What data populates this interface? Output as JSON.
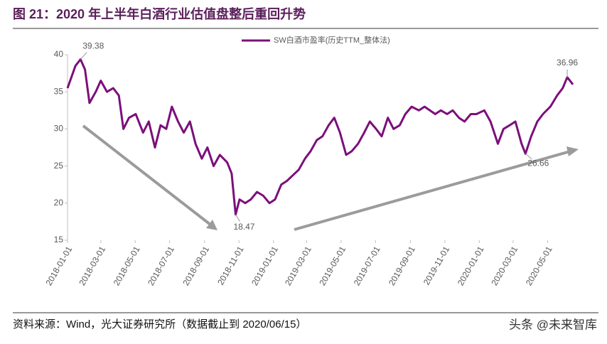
{
  "chart_data": {
    "type": "line",
    "title": "图 21：2020 年上半年白酒行业估值盘整后重回升势",
    "source": "资料来源：Wind，光大证券研究所（数据截止到 2020/06/15）",
    "watermark": "头条 @未来智库",
    "x": [
      "2018-01-01",
      "2018-01-08",
      "2018-01-15",
      "2018-01-24",
      "2018-02-01",
      "2018-02-09",
      "2018-02-20",
      "2018-03-01",
      "2018-03-12",
      "2018-03-23",
      "2018-04-02",
      "2018-04-10",
      "2018-04-20",
      "2018-05-02",
      "2018-05-15",
      "2018-05-25",
      "2018-06-05",
      "2018-06-15",
      "2018-06-25",
      "2018-07-05",
      "2018-07-16",
      "2018-07-26",
      "2018-08-06",
      "2018-08-16",
      "2018-08-27",
      "2018-09-06",
      "2018-09-17",
      "2018-09-28",
      "2018-10-11",
      "2018-10-19",
      "2018-10-26",
      "2018-11-02",
      "2018-11-12",
      "2018-11-22",
      "2018-12-03",
      "2018-12-14",
      "2018-12-25",
      "2019-01-04",
      "2019-01-15",
      "2019-01-25",
      "2019-02-15",
      "2019-02-26",
      "2019-03-08",
      "2019-03-19",
      "2019-03-29",
      "2019-04-09",
      "2019-04-19",
      "2019-04-29",
      "2019-05-10",
      "2019-05-20",
      "2019-05-31",
      "2019-06-11",
      "2019-06-21",
      "2019-07-02",
      "2019-07-12",
      "2019-07-23",
      "2019-08-02",
      "2019-08-13",
      "2019-08-23",
      "2019-09-03",
      "2019-09-16",
      "2019-09-26",
      "2019-10-15",
      "2019-10-25",
      "2019-11-05",
      "2019-11-15",
      "2019-11-26",
      "2019-12-06",
      "2019-12-17",
      "2019-12-27",
      "2020-01-10",
      "2020-01-21",
      "2020-02-03",
      "2020-02-13",
      "2020-02-24",
      "2020-03-05",
      "2020-03-16",
      "2020-03-23",
      "2020-04-02",
      "2020-04-13",
      "2020-04-23",
      "2020-05-06",
      "2020-05-18",
      "2020-05-28",
      "2020-06-05",
      "2020-06-15"
    ],
    "series": [
      {
        "name": "SW白酒市盈率(历史TTM_整体法)",
        "color": "#7b0f7b",
        "values": [
          35.5,
          37,
          38.5,
          39.38,
          38,
          33.5,
          35,
          36.5,
          35,
          35.5,
          34.5,
          30,
          31.5,
          32,
          29.5,
          31,
          27.5,
          30.5,
          30,
          33,
          31,
          29.5,
          31,
          28,
          26,
          27.5,
          25,
          26.5,
          25.5,
          24,
          18.47,
          20.5,
          20,
          20.5,
          21.5,
          21,
          20,
          20.5,
          22.5,
          23,
          24.5,
          26,
          27,
          28.5,
          29,
          30.5,
          31.5,
          29.5,
          26.5,
          27,
          28,
          29.5,
          31,
          30,
          29,
          31.5,
          30,
          30.5,
          32,
          33,
          32.5,
          33,
          32,
          32.5,
          32,
          32.5,
          31.5,
          31,
          32,
          32,
          32.5,
          31,
          28,
          30,
          30.5,
          31,
          28,
          26.66,
          29,
          31,
          32,
          33,
          34.5,
          35.5,
          36.96,
          36
        ]
      }
    ],
    "annotations": [
      {
        "x": "2018-01-24",
        "value": 39.38
      },
      {
        "x": "2018-10-26",
        "value": 18.47
      },
      {
        "x": "2020-06-05",
        "value": 36.96
      },
      {
        "x": "2020-03-23",
        "value": 26.66
      }
    ],
    "xlim": [
      "2018-01-01",
      "2020-06-15"
    ],
    "xticks": [
      "2018-01-01",
      "2018-03-01",
      "2018-05-01",
      "2018-07-01",
      "2018-09-01",
      "2018-11-01",
      "2019-01-01",
      "2019-03-01",
      "2019-05-01",
      "2019-07-01",
      "2019-09-01",
      "2019-11-01",
      "2020-01-01",
      "2020-03-01",
      "2020-05-01"
    ],
    "ylim": [
      15,
      40
    ],
    "yticks": [
      15,
      20,
      25,
      30,
      35,
      40
    ],
    "grid": false,
    "legend": "top"
  }
}
